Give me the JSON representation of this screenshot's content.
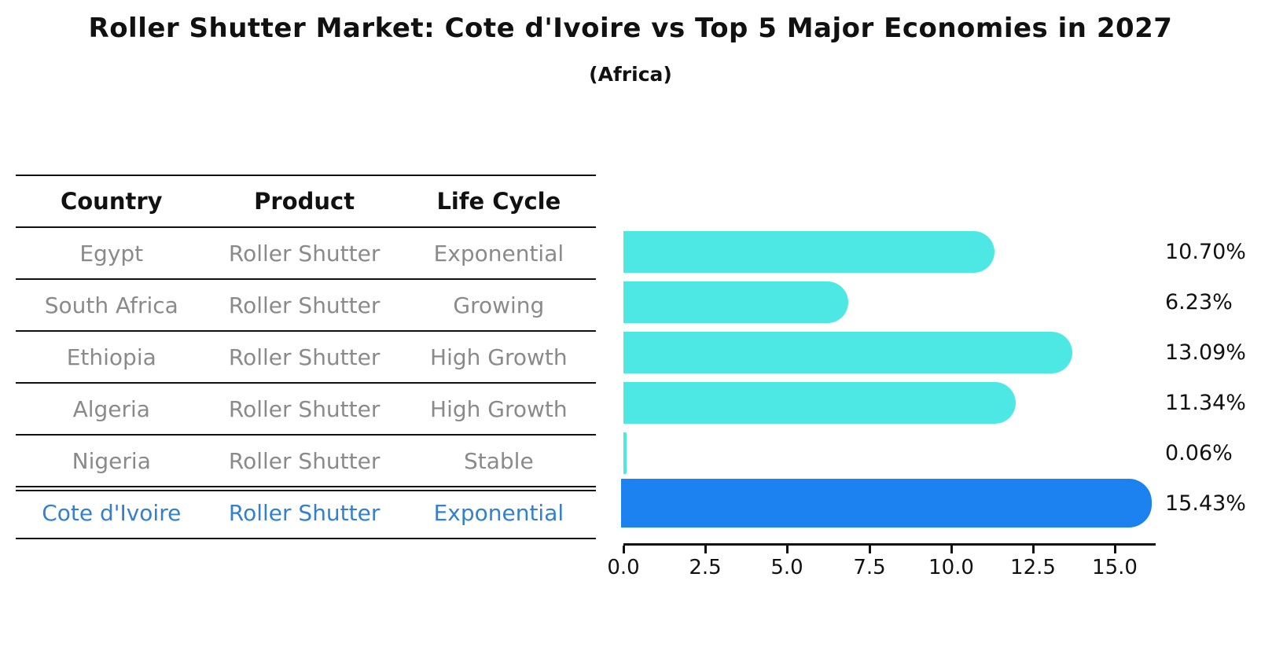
{
  "title": "Roller Shutter Market: Cote d'Ivoire vs Top 5 Major Economies in 2027",
  "subtitle": "(Africa)",
  "table": {
    "headers": [
      "Country",
      "Product",
      "Life Cycle"
    ],
    "rows": [
      {
        "country": "Egypt",
        "product": "Roller Shutter",
        "life_cycle": "Exponential"
      },
      {
        "country": "South Africa",
        "product": "Roller Shutter",
        "life_cycle": "Growing"
      },
      {
        "country": "Ethiopia",
        "product": "Roller Shutter",
        "life_cycle": "High Growth"
      },
      {
        "country": "Algeria",
        "product": "Roller Shutter",
        "life_cycle": "High Growth"
      },
      {
        "country": "Nigeria",
        "product": "Roller Shutter",
        "life_cycle": "Stable"
      },
      {
        "country": "Cote d'Ivoire",
        "product": "Roller Shutter",
        "life_cycle": "Exponential"
      }
    ],
    "highlight_row": "Cote d'Ivoire"
  },
  "chart_data": {
    "type": "bar",
    "orientation": "horizontal",
    "title": "Roller Shutter Market: Cote d'Ivoire vs Top 5 Major Economies in 2027",
    "subtitle": "(Africa)",
    "categories": [
      "Egypt",
      "South Africa",
      "Ethiopia",
      "Algeria",
      "Nigeria",
      "Cote d'Ivoire"
    ],
    "values": [
      10.7,
      6.23,
      13.09,
      11.34,
      0.06,
      15.43
    ],
    "value_labels": [
      "10.70%",
      "6.23%",
      "13.09%",
      "11.34%",
      "0.06%",
      "15.43%"
    ],
    "xticks": [
      "0.0",
      "2.5",
      "5.0",
      "7.5",
      "10.0",
      "12.5",
      "15.0"
    ],
    "xlim": [
      0,
      16.2
    ],
    "grid": false,
    "legend": false,
    "bar_color": "#4DE8E4",
    "highlight_color": "#1B82F0",
    "highlight_index": 5
  },
  "colors": {
    "text_primary": "#111111",
    "text_muted": "#8a8a8a",
    "text_highlight": "#3380CC",
    "bar_default": "#4DE8E4",
    "bar_highlight": "#1B82F0"
  }
}
